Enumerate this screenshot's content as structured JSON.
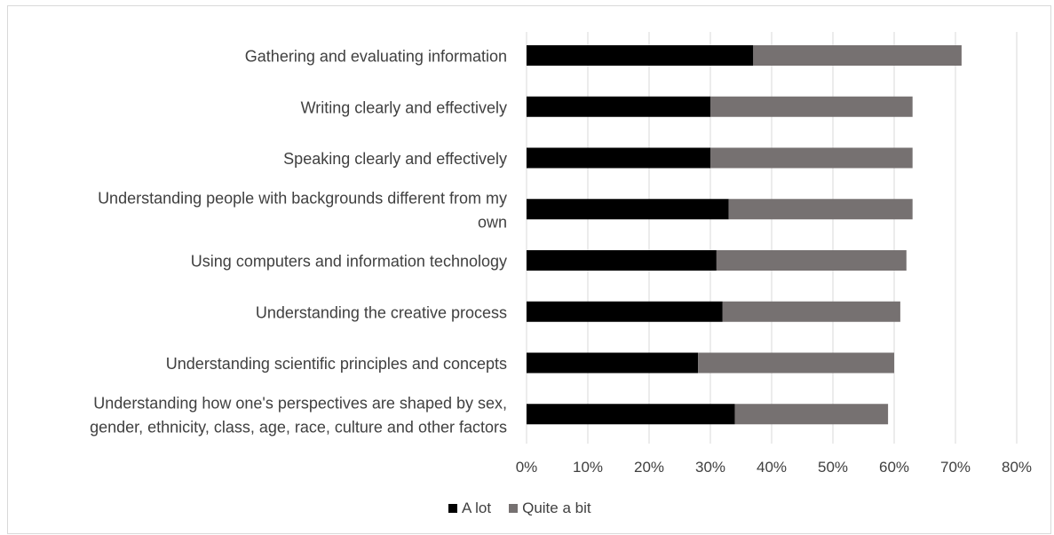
{
  "chart_data": {
    "type": "bar",
    "orientation": "horizontal",
    "stacked": true,
    "categories": [
      "Gathering and evaluating information",
      "Writing clearly and effectively",
      "Speaking clearly and effectively",
      "Understanding people with backgrounds different from my own",
      "Using computers and information technology",
      "Understanding the creative process",
      "Understanding scientific principles and concepts",
      "Understanding how one's perspectives are shaped by sex, gender, ethnicity, class, age, race, culture and other factors"
    ],
    "category_lines": [
      [
        "Gathering and evaluating information"
      ],
      [
        "Writing clearly and effectively"
      ],
      [
        "Speaking clearly and effectively"
      ],
      [
        "Understanding people with backgrounds different from my",
        "own"
      ],
      [
        "Using computers and information technology"
      ],
      [
        "Understanding the creative process"
      ],
      [
        "Understanding scientific principles and concepts"
      ],
      [
        "Understanding how one's perspectives are shaped by sex,",
        "gender, ethnicity, class, age, race, culture and other factors"
      ]
    ],
    "series": [
      {
        "name": "A lot",
        "color": "#000000",
        "values": [
          37,
          30,
          30,
          33,
          31,
          32,
          28,
          34
        ]
      },
      {
        "name": "Quite a bit",
        "color": "#767171",
        "values": [
          34,
          33,
          33,
          30,
          31,
          29,
          32,
          25
        ]
      }
    ],
    "xlim": [
      0,
      80
    ],
    "xticks": [
      0,
      10,
      20,
      30,
      40,
      50,
      60,
      70,
      80
    ],
    "tick_labels": [
      "0%",
      "10%",
      "20%",
      "30%",
      "40%",
      "50%",
      "60%",
      "70%",
      "80%"
    ],
    "grid": true,
    "legend_position": "bottom"
  }
}
